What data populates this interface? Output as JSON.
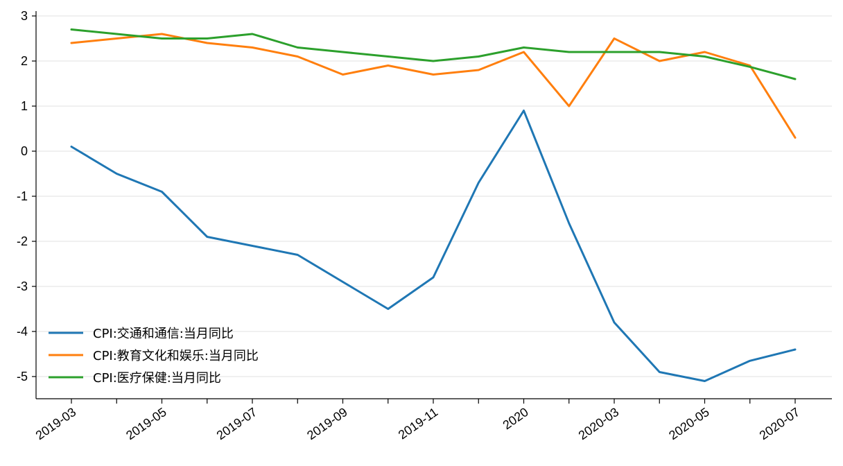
{
  "chart_data": {
    "type": "line",
    "title": "",
    "xlabel": "",
    "ylabel": "",
    "x": [
      "2019-03",
      "2019-04",
      "2019-05",
      "2019-06",
      "2019-07",
      "2019-08",
      "2019-09",
      "2019-10",
      "2019-11",
      "2019-12",
      "2020-01",
      "2020-02",
      "2020-03",
      "2020-04",
      "2020-05",
      "2020-06",
      "2020-07"
    ],
    "x_tick_labels": [
      {
        "x": "2019-03",
        "label": "2019-03"
      },
      {
        "x": "2019-04",
        "label": ""
      },
      {
        "x": "2019-05",
        "label": "2019-05"
      },
      {
        "x": "2019-06",
        "label": ""
      },
      {
        "x": "2019-07",
        "label": "2019-07"
      },
      {
        "x": "2019-08",
        "label": ""
      },
      {
        "x": "2019-09",
        "label": "2019-09"
      },
      {
        "x": "2019-10",
        "label": ""
      },
      {
        "x": "2019-11",
        "label": "2019-11"
      },
      {
        "x": "2019-12",
        "label": ""
      },
      {
        "x": "2020-01",
        "label": "2020"
      },
      {
        "x": "2020-02",
        "label": ""
      },
      {
        "x": "2020-03",
        "label": "2020-03"
      },
      {
        "x": "2020-04",
        "label": ""
      },
      {
        "x": "2020-05",
        "label": "2020-05"
      },
      {
        "x": "2020-06",
        "label": ""
      },
      {
        "x": "2020-07",
        "label": "2020-07"
      }
    ],
    "y_ticks": [
      3,
      2,
      1,
      0,
      -1,
      -2,
      -3,
      -4,
      -5
    ],
    "ylim": [
      -5.5,
      3.1
    ],
    "grid": "horizontal",
    "legend_position": "lower-left",
    "series": [
      {
        "name": "CPI:交通和通信:当月同比",
        "color": "#1f77b4",
        "values": [
          0.1,
          -0.5,
          -0.9,
          -1.9,
          -2.1,
          -2.3,
          -2.9,
          -3.5,
          -2.8,
          -0.7,
          0.9,
          -1.6,
          -3.8,
          -4.9,
          -5.1,
          -4.65,
          -4.4
        ]
      },
      {
        "name": "CPI:教育文化和娱乐:当月同比",
        "color": "#ff7f0e",
        "values": [
          2.4,
          2.5,
          2.6,
          2.4,
          2.3,
          2.1,
          1.7,
          1.9,
          1.7,
          1.8,
          2.2,
          1.0,
          2.5,
          2.0,
          2.2,
          1.9,
          0.3
        ]
      },
      {
        "name": "CPI:医疗保健:当月同比",
        "color": "#2ca02c",
        "values": [
          2.7,
          2.6,
          2.5,
          2.5,
          2.6,
          2.3,
          2.2,
          2.1,
          2.0,
          2.1,
          2.3,
          2.2,
          2.2,
          2.2,
          2.1,
          1.87,
          1.6
        ]
      }
    ]
  }
}
